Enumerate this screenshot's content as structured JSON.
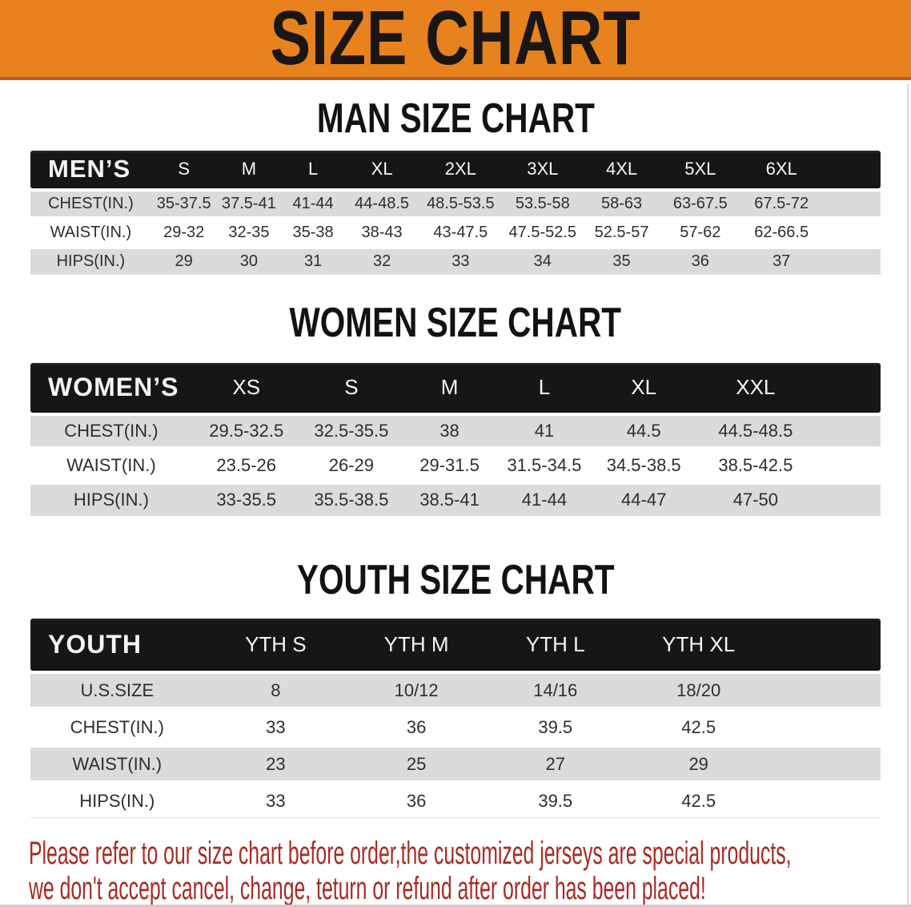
{
  "banner": {
    "title": "SIZE CHART"
  },
  "colors": {
    "banner_bg": "#e8821e",
    "bar_bg": "#161616",
    "row_gray": "#dbdbdb",
    "disclaimer_red": "#a62b24"
  },
  "sections": [
    {
      "heading": "MAN SIZE CHART",
      "table": {
        "label": "MEN’S",
        "sizes": [
          "S",
          "M",
          "L",
          "XL",
          "2XL",
          "3XL",
          "4XL",
          "5XL",
          "6XL"
        ],
        "rows": [
          {
            "label": "CHEST(IN.)",
            "values": [
              "35-37.5",
              "37.5-41",
              "41-44",
              "44-48.5",
              "48.5-53.5",
              "53.5-58",
              "58-63",
              "63-67.5",
              "67.5-72"
            ]
          },
          {
            "label": "WAIST(IN.)",
            "values": [
              "29-32",
              "32-35",
              "35-38",
              "38-43",
              "43-47.5",
              "47.5-52.5",
              "52.5-57",
              "57-62",
              "62-66.5"
            ]
          },
          {
            "label": "HIPS(IN.)",
            "values": [
              "29",
              "30",
              "31",
              "32",
              "33",
              "34",
              "35",
              "36",
              "37"
            ]
          }
        ]
      }
    },
    {
      "heading": "WOMEN SIZE CHART",
      "table": {
        "label": "WOMEN’S",
        "sizes": [
          "XS",
          "S",
          "M",
          "L",
          "XL",
          "XXL"
        ],
        "rows": [
          {
            "label": "CHEST(IN.)",
            "values": [
              "29.5-32.5",
              "32.5-35.5",
              "38",
              "41",
              "44.5",
              "44.5-48.5"
            ]
          },
          {
            "label": "WAIST(IN.)",
            "values": [
              "23.5-26",
              "26-29",
              "29-31.5",
              "31.5-34.5",
              "34.5-38.5",
              "38.5-42.5"
            ]
          },
          {
            "label": "HIPS(IN.)",
            "values": [
              "33-35.5",
              "35.5-38.5",
              "38.5-41",
              "41-44",
              "44-47",
              "47-50"
            ]
          }
        ]
      }
    },
    {
      "heading": "YOUTH SIZE CHART",
      "table": {
        "label": "YOUTH",
        "sizes": [
          "YTH S",
          "YTH M",
          "YTH L",
          "YTH XL"
        ],
        "rows": [
          {
            "label": "U.S.SIZE",
            "values": [
              "8",
              "10/12",
              "14/16",
              "18/20"
            ]
          },
          {
            "label": "CHEST(IN.)",
            "values": [
              "33",
              "36",
              "39.5",
              "42.5"
            ]
          },
          {
            "label": "WAIST(IN.)",
            "values": [
              "23",
              "25",
              "27",
              "29"
            ]
          },
          {
            "label": "HIPS(IN.)",
            "values": [
              "33",
              "36",
              "39.5",
              "42.5"
            ]
          }
        ]
      }
    }
  ],
  "disclaimer": {
    "line1": "Please refer to our size chart before order,the customized jerseys are special products,",
    "line2": "we don't accept cancel, change, teturn or refund after order has been placed!"
  }
}
